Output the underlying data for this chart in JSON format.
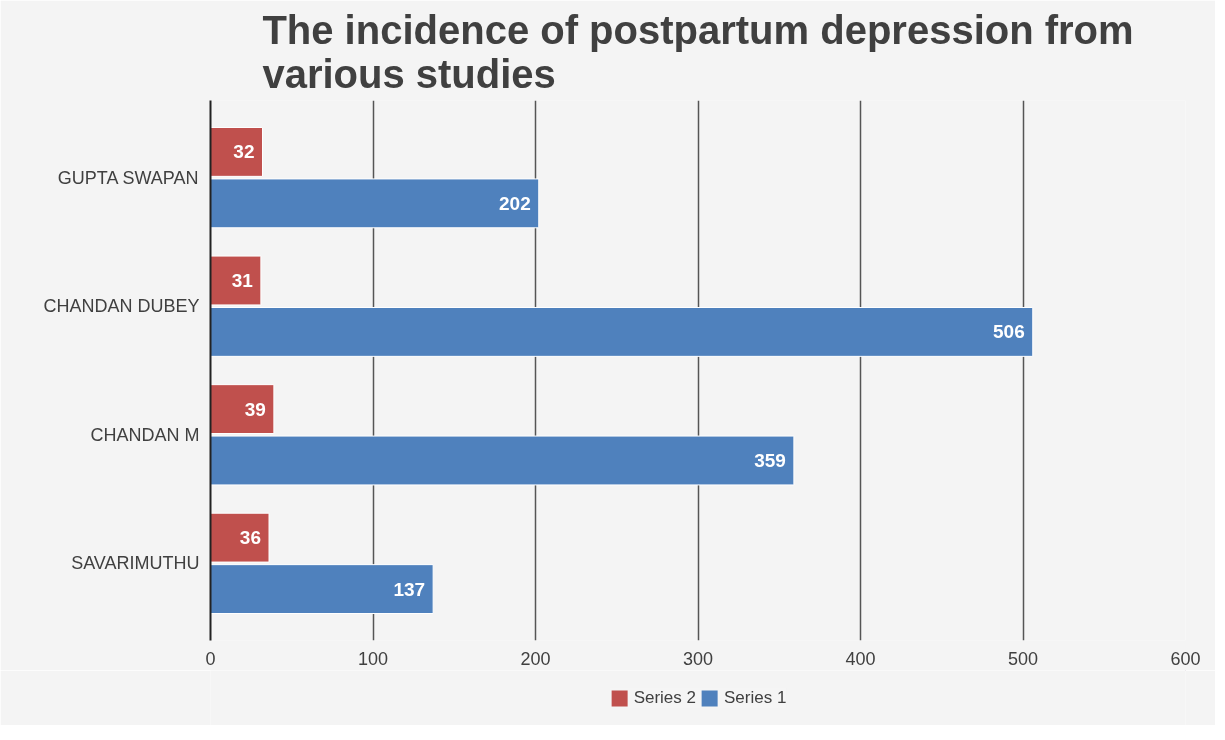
{
  "chart_data": {
    "type": "bar",
    "orientation": "horizontal",
    "title": "The incidence of postpartum depression from various studies",
    "categories": [
      "GUPTA SWAPAN",
      "CHANDAN DUBEY",
      "CHANDAN M",
      "SAVARIMUTHU"
    ],
    "series": [
      {
        "name": "Series 2",
        "color": "#c0504d",
        "values": [
          32,
          31,
          39,
          36
        ]
      },
      {
        "name": "Series 1",
        "color": "#4f81bd",
        "values": [
          202,
          506,
          359,
          137
        ]
      }
    ],
    "xlim": [
      0,
      600
    ],
    "xticks": [
      0,
      100,
      200,
      300,
      400,
      500,
      600
    ],
    "grid": "x",
    "legend": "bottom",
    "data_labels": true
  }
}
